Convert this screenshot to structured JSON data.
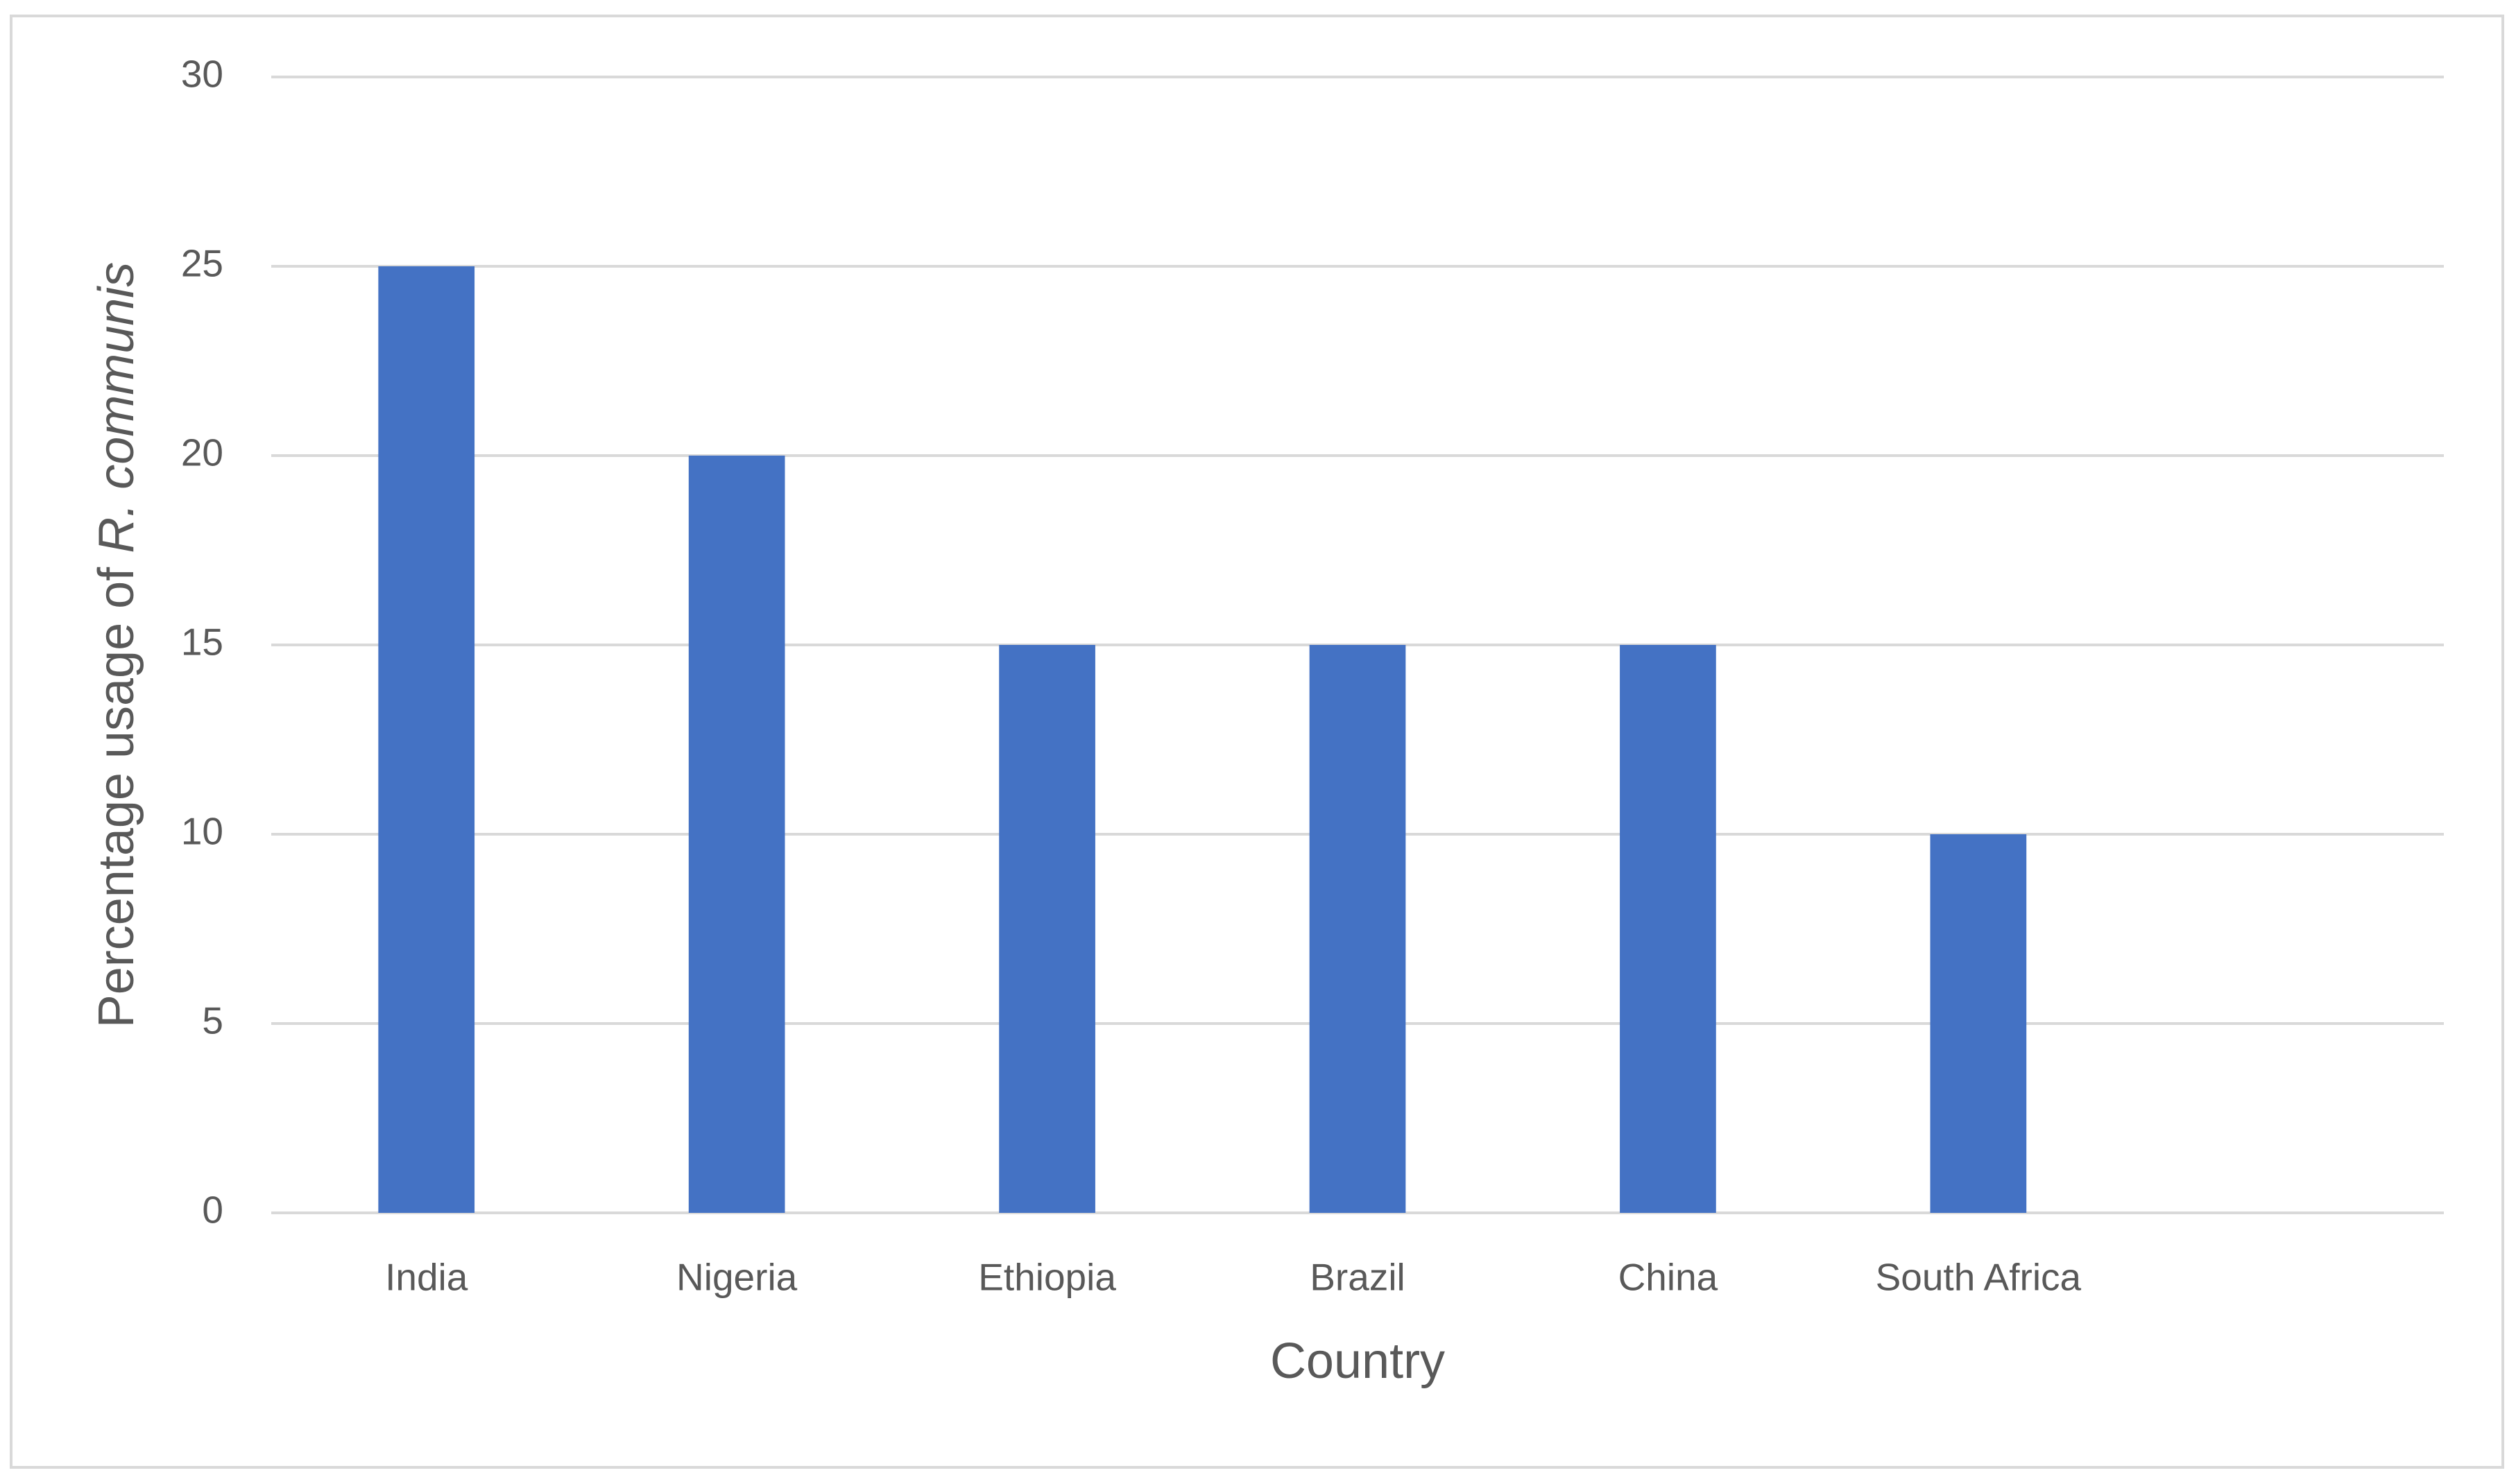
{
  "chart_data": {
    "type": "bar",
    "categories": [
      "India",
      "Nigeria",
      "Ethiopia",
      "Brazil",
      "China",
      "South Africa",
      null
    ],
    "values": [
      25,
      20,
      15,
      15,
      15,
      10,
      null
    ],
    "color": "#4472c4",
    "x_label": "Country",
    "y_label": [
      "Percentage usage of ",
      "R. communis"
    ],
    "ylim": [
      0,
      30
    ],
    "yticks": [
      0,
      5,
      10,
      15,
      20,
      25,
      30
    ],
    "grid": true
  }
}
